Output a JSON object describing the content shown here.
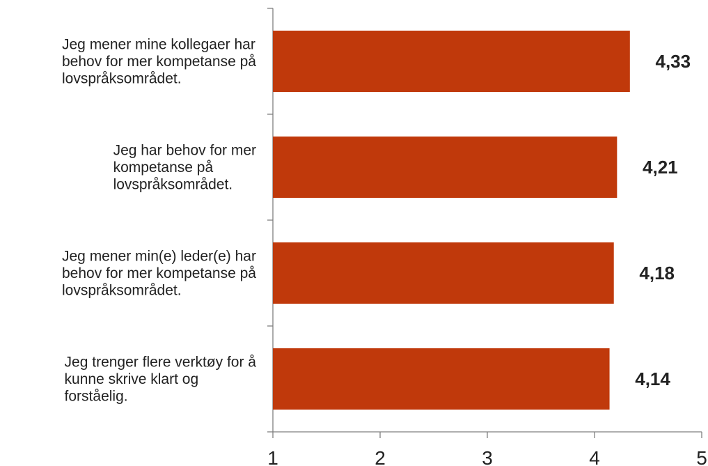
{
  "chart_data": {
    "type": "bar",
    "orientation": "horizontal",
    "title": "",
    "xlabel": "",
    "ylabel": "",
    "categories": [
      "Jeg mener mine kollegaer har behov for mer kompetanse på lovspråksområdet.",
      "Jeg har behov for mer kompetanse på lovspråksområdet.",
      "Jeg mener min(e) leder(e) har behov for mer kompetanse på lovspråksområdet.",
      "Jeg trenger flere verktøy for å kunne skrive klart og forståelig."
    ],
    "category_lines": [
      [
        "Jeg mener mine kollegaer har",
        "behov for mer kompetanse på",
        "lovspråksområdet."
      ],
      [
        "Jeg har behov for mer",
        "kompetanse på",
        "lovspråksområdet."
      ],
      [
        "Jeg mener min(e) leder(e) har",
        "behov for mer kompetanse på",
        "lovspråksområdet."
      ],
      [
        "Jeg trenger flere verktøy for å",
        "kunne skrive klart og",
        "forståelig."
      ]
    ],
    "values": [
      4.33,
      4.21,
      4.18,
      4.14
    ],
    "value_labels": [
      "4,33",
      "4,21",
      "4,18",
      "4,14"
    ],
    "xlim": [
      1,
      5
    ],
    "xticks": [
      1,
      2,
      3,
      4,
      5
    ],
    "xtick_labels": [
      "1",
      "2",
      "3",
      "4",
      "5"
    ],
    "grid": false,
    "legend": "none",
    "bar_color": "#c0390b"
  }
}
